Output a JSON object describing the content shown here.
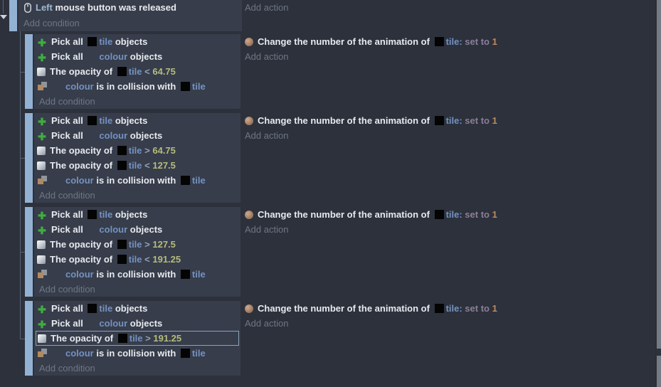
{
  "colors": {
    "accent_bar": "#93b1d2",
    "object_name": "#7492c2",
    "number": "#b5bc7c",
    "action_value": "#c18a5c",
    "selection_outline": "#8da3b9",
    "condition_bg": "#373d4b",
    "page_bg": "#2c313c"
  },
  "top_event": {
    "condition_icon": "mouse-icon",
    "condition_param": "Left",
    "condition_text": " mouse button was released",
    "add_condition": "Add condition",
    "add_action": "Add action"
  },
  "sub_events": [
    {
      "rows": [
        {
          "icon": "pick-all-icon",
          "segments": [
            {
              "k": "txt",
              "v": "Pick all "
            },
            {
              "k": "thumb"
            },
            {
              "k": "obj",
              "v": "tile"
            },
            {
              "k": "txt",
              "v": " objects"
            }
          ]
        },
        {
          "icon": "pick-all-icon",
          "segments": [
            {
              "k": "txt",
              "v": "Pick all "
            },
            {
              "k": "ghost"
            },
            {
              "k": "obj",
              "v": "colour"
            },
            {
              "k": "txt",
              "v": " objects"
            }
          ]
        },
        {
          "icon": "opacity-icon",
          "segments": [
            {
              "k": "txt",
              "v": "The opacity of "
            },
            {
              "k": "thumb"
            },
            {
              "k": "obj",
              "v": "tile"
            },
            {
              "k": "op",
              "v": " < "
            },
            {
              "k": "num",
              "v": "64.75"
            }
          ]
        },
        {
          "icon": "collision-icon",
          "segments": [
            {
              "k": "ghost"
            },
            {
              "k": "obj",
              "v": "colour"
            },
            {
              "k": "txt",
              "v": " is in collision with "
            },
            {
              "k": "thumb"
            },
            {
              "k": "obj",
              "v": "tile"
            }
          ]
        }
      ],
      "selected_row": null,
      "add_condition": "Add condition",
      "action": {
        "icon": "animation-icon",
        "segments": [
          {
            "k": "txt",
            "v": "Change the number of the animation of "
          },
          {
            "k": "thumb"
          },
          {
            "k": "obj",
            "v": "tile:"
          },
          {
            "k": "setto",
            "v": " set to "
          },
          {
            "k": "anum",
            "v": "1"
          }
        ]
      },
      "add_action": "Add action"
    },
    {
      "rows": [
        {
          "icon": "pick-all-icon",
          "segments": [
            {
              "k": "txt",
              "v": "Pick all "
            },
            {
              "k": "thumb"
            },
            {
              "k": "obj",
              "v": "tile"
            },
            {
              "k": "txt",
              "v": " objects"
            }
          ]
        },
        {
          "icon": "pick-all-icon",
          "segments": [
            {
              "k": "txt",
              "v": "Pick all "
            },
            {
              "k": "ghost"
            },
            {
              "k": "obj",
              "v": "colour"
            },
            {
              "k": "txt",
              "v": " objects"
            }
          ]
        },
        {
          "icon": "opacity-icon",
          "segments": [
            {
              "k": "txt",
              "v": "The opacity of "
            },
            {
              "k": "thumb"
            },
            {
              "k": "obj",
              "v": "tile"
            },
            {
              "k": "op",
              "v": " > "
            },
            {
              "k": "num",
              "v": "64.75"
            }
          ]
        },
        {
          "icon": "opacity-icon",
          "segments": [
            {
              "k": "txt",
              "v": "The opacity of "
            },
            {
              "k": "thumb"
            },
            {
              "k": "obj",
              "v": "tile"
            },
            {
              "k": "op",
              "v": " < "
            },
            {
              "k": "num",
              "v": "127.5"
            }
          ]
        },
        {
          "icon": "collision-icon",
          "segments": [
            {
              "k": "ghost"
            },
            {
              "k": "obj",
              "v": "colour"
            },
            {
              "k": "txt",
              "v": " is in collision with "
            },
            {
              "k": "thumb"
            },
            {
              "k": "obj",
              "v": "tile"
            }
          ]
        }
      ],
      "selected_row": null,
      "add_condition": "Add condition",
      "action": {
        "icon": "animation-icon",
        "segments": [
          {
            "k": "txt",
            "v": "Change the number of the animation of "
          },
          {
            "k": "thumb"
          },
          {
            "k": "obj",
            "v": "tile:"
          },
          {
            "k": "setto",
            "v": " set to "
          },
          {
            "k": "anum",
            "v": "1"
          }
        ]
      },
      "add_action": "Add action"
    },
    {
      "rows": [
        {
          "icon": "pick-all-icon",
          "segments": [
            {
              "k": "txt",
              "v": "Pick all "
            },
            {
              "k": "thumb"
            },
            {
              "k": "obj",
              "v": "tile"
            },
            {
              "k": "txt",
              "v": " objects"
            }
          ]
        },
        {
          "icon": "pick-all-icon",
          "segments": [
            {
              "k": "txt",
              "v": "Pick all "
            },
            {
              "k": "ghost"
            },
            {
              "k": "obj",
              "v": "colour"
            },
            {
              "k": "txt",
              "v": " objects"
            }
          ]
        },
        {
          "icon": "opacity-icon",
          "segments": [
            {
              "k": "txt",
              "v": "The opacity of "
            },
            {
              "k": "thumb"
            },
            {
              "k": "obj",
              "v": "tile"
            },
            {
              "k": "op",
              "v": " > "
            },
            {
              "k": "num",
              "v": "127.5"
            }
          ]
        },
        {
          "icon": "opacity-icon",
          "segments": [
            {
              "k": "txt",
              "v": "The opacity of "
            },
            {
              "k": "thumb"
            },
            {
              "k": "obj",
              "v": "tile"
            },
            {
              "k": "op",
              "v": " < "
            },
            {
              "k": "num",
              "v": "191.25"
            }
          ]
        },
        {
          "icon": "collision-icon",
          "segments": [
            {
              "k": "ghost"
            },
            {
              "k": "obj",
              "v": "colour"
            },
            {
              "k": "txt",
              "v": " is in collision with "
            },
            {
              "k": "thumb"
            },
            {
              "k": "obj",
              "v": "tile"
            }
          ]
        }
      ],
      "selected_row": null,
      "add_condition": "Add condition",
      "action": {
        "icon": "animation-icon",
        "segments": [
          {
            "k": "txt",
            "v": "Change the number of the animation of "
          },
          {
            "k": "thumb"
          },
          {
            "k": "obj",
            "v": "tile:"
          },
          {
            "k": "setto",
            "v": " set to "
          },
          {
            "k": "anum",
            "v": "1"
          }
        ]
      },
      "add_action": "Add action"
    },
    {
      "rows": [
        {
          "icon": "pick-all-icon",
          "segments": [
            {
              "k": "txt",
              "v": "Pick all "
            },
            {
              "k": "thumb"
            },
            {
              "k": "obj",
              "v": "tile"
            },
            {
              "k": "txt",
              "v": " objects"
            }
          ]
        },
        {
          "icon": "pick-all-icon",
          "segments": [
            {
              "k": "txt",
              "v": "Pick all "
            },
            {
              "k": "ghost"
            },
            {
              "k": "obj",
              "v": "colour"
            },
            {
              "k": "txt",
              "v": " objects"
            }
          ]
        },
        {
          "icon": "opacity-icon",
          "segments": [
            {
              "k": "txt",
              "v": "The opacity of "
            },
            {
              "k": "thumb"
            },
            {
              "k": "obj",
              "v": "tile"
            },
            {
              "k": "op",
              "v": " > "
            },
            {
              "k": "num",
              "v": "191.25"
            }
          ]
        },
        {
          "icon": "collision-icon",
          "segments": [
            {
              "k": "ghost"
            },
            {
              "k": "obj",
              "v": "colour"
            },
            {
              "k": "txt",
              "v": " is in collision with "
            },
            {
              "k": "thumb"
            },
            {
              "k": "obj",
              "v": "tile"
            }
          ]
        }
      ],
      "selected_row": 2,
      "add_condition": "Add condition",
      "action": {
        "icon": "animation-icon",
        "segments": [
          {
            "k": "txt",
            "v": "Change the number of the animation of "
          },
          {
            "k": "thumb"
          },
          {
            "k": "obj",
            "v": "tile:"
          },
          {
            "k": "setto",
            "v": " set to "
          },
          {
            "k": "anum",
            "v": "1"
          }
        ]
      },
      "add_action": "Add action"
    }
  ]
}
